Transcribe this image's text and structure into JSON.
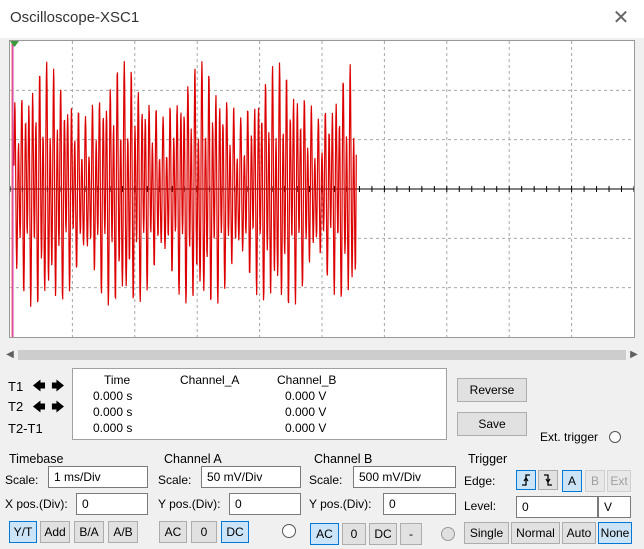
{
  "window": {
    "title": "Oscilloscope-XSC1"
  },
  "cursor_labels": {
    "t1": "T1",
    "t2": "T2",
    "t2t1": "T2-T1"
  },
  "readout": {
    "headers": [
      "Time",
      "Channel_A",
      "Channel_B"
    ],
    "rows": [
      {
        "time": "0.000 s",
        "a": "",
        "b": "0.000 V"
      },
      {
        "time": "0.000 s",
        "a": "",
        "b": "0.000 V"
      },
      {
        "time": "0.000 s",
        "a": "",
        "b": "0.000 V"
      }
    ]
  },
  "buttons": {
    "reverse": "Reverse",
    "save": "Save"
  },
  "ext_trigger": "Ext. trigger",
  "timebase": {
    "title": "Timebase",
    "scale_label": "Scale:",
    "scale": "1 ms/Div",
    "xpos_label": "X pos.(Div):",
    "xpos": "0",
    "modes": [
      "Y/T",
      "Add",
      "B/A",
      "A/B"
    ],
    "selected_mode": "Y/T"
  },
  "channel_a": {
    "title": "Channel A",
    "scale_label": "Scale:",
    "scale": "50 mV/Div",
    "ypos_label": "Y pos.(Div):",
    "ypos": "0",
    "coupling": [
      "AC",
      "0",
      "DC"
    ],
    "selected": "DC"
  },
  "channel_b": {
    "title": "Channel B",
    "scale_label": "Scale:",
    "scale": "500 mV/Div",
    "ypos_label": "Y pos.(Div):",
    "ypos": "0",
    "coupling": [
      "AC",
      "0",
      "DC",
      "-"
    ],
    "selected": "AC"
  },
  "trigger": {
    "title": "Trigger",
    "edge_label": "Edge:",
    "sources": [
      "A",
      "B",
      "Ext"
    ],
    "selected_source": "A",
    "level_label": "Level:",
    "level": "0",
    "level_unit": "V",
    "modes": [
      "Single",
      "Normal",
      "Auto",
      "None"
    ],
    "selected_mode": "None"
  },
  "colors": {
    "trace": "#dd0000",
    "axis": "#000000",
    "cursor_t1": "#ff3f3f",
    "cursor_t2": "#c040c0",
    "grid": "#a8a8a8"
  }
}
